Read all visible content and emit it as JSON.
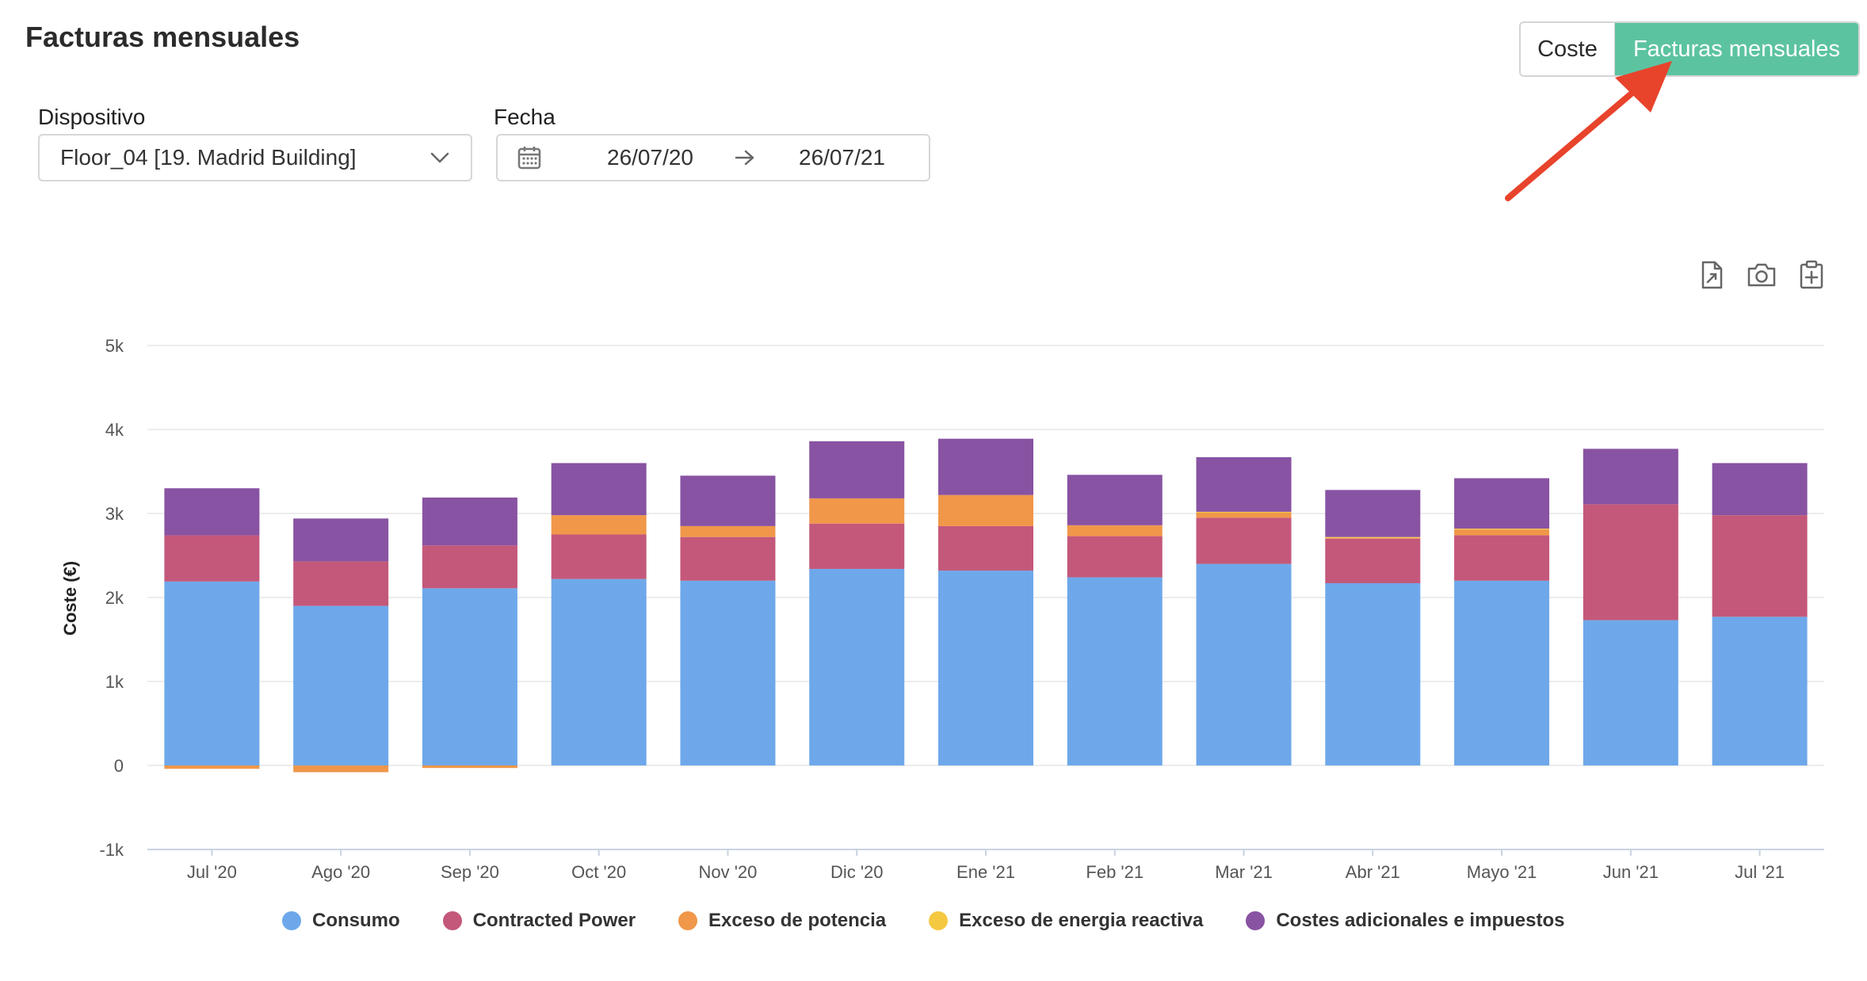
{
  "header": {
    "title": "Facturas mensuales"
  },
  "view_toggle": {
    "options": [
      "Coste",
      "Facturas mensuales"
    ],
    "selected": "Facturas mensuales"
  },
  "filters": {
    "device_label": "Dispositivo",
    "device_value": "Floor_04 [19. Madrid Building]",
    "date_label": "Fecha",
    "date_from": "26/07/20",
    "date_to": "26/07/21"
  },
  "toolbar": {
    "icons": [
      "export-file-icon",
      "camera-icon",
      "clipboard-add-icon"
    ]
  },
  "colors": {
    "accent": "#5cc3a0",
    "arrow": "#e8432b",
    "consumo": "#6ea8ea",
    "contracted": "#c4587a",
    "exceso_potencia": "#f0974a",
    "exceso_reactiva": "#f5c842",
    "costes": "#8853a3"
  },
  "chart_data": {
    "type": "bar",
    "stacked": true,
    "title": "",
    "xlabel": "",
    "ylabel": "Coste (€)",
    "ylim": [
      -1000,
      5000
    ],
    "yticks": [
      -1000,
      0,
      1000,
      2000,
      3000,
      4000,
      5000
    ],
    "ytick_labels": [
      "-1k",
      "0",
      "1k",
      "2k",
      "3k",
      "4k",
      "5k"
    ],
    "categories": [
      "Jul '20",
      "Ago '20",
      "Sep '20",
      "Oct '20",
      "Nov '20",
      "Dic '20",
      "Ene '21",
      "Feb '21",
      "Mar '21",
      "Abr '21",
      "Mayo '21",
      "Jun '21",
      "Jul '21"
    ],
    "series": [
      {
        "name": "Consumo",
        "color": "#6ea8ea",
        "values": [
          2190,
          1900,
          2110,
          2220,
          2200,
          2340,
          2320,
          2240,
          2400,
          2170,
          2200,
          1730,
          1770
        ]
      },
      {
        "name": "Contracted Power",
        "color": "#c4587a",
        "values": [
          550,
          530,
          510,
          530,
          520,
          540,
          530,
          490,
          550,
          530,
          540,
          1380,
          1210
        ]
      },
      {
        "name": "Exceso de potencia",
        "color": "#f0974a",
        "values": [
          -40,
          -80,
          -30,
          230,
          130,
          300,
          370,
          130,
          60,
          10,
          70,
          0,
          0
        ]
      },
      {
        "name": "Exceso de energia reactiva",
        "color": "#f5c842",
        "values": [
          0,
          0,
          0,
          0,
          0,
          0,
          0,
          0,
          10,
          10,
          10,
          0,
          0
        ]
      },
      {
        "name": "Costes adicionales e impuestos",
        "color": "#8853a3",
        "values": [
          560,
          510,
          570,
          620,
          600,
          680,
          670,
          600,
          650,
          560,
          600,
          660,
          620
        ]
      }
    ],
    "legend_position": "bottom",
    "grid": true
  }
}
